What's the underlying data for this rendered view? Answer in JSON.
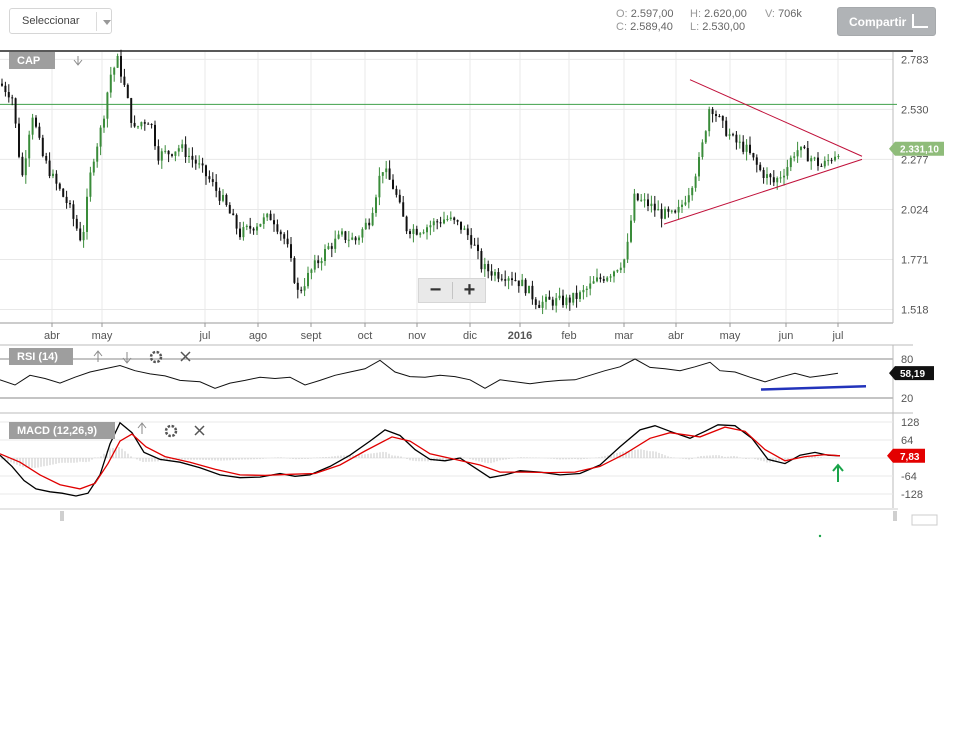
{
  "toolbar": {
    "select_label": "Seleccionar",
    "share_label": "Compartir",
    "share_icon": "share-icon"
  },
  "ohlc": {
    "o_label": "O:",
    "o": "2.597,00",
    "h_label": "H:",
    "h": "2.620,00",
    "v_label": "V:",
    "v": "706k",
    "c_label": "C:",
    "c": "2.589,40",
    "l_label": "L:",
    "l": "2.530,00"
  },
  "chart_data": [
    {
      "type": "candlestick",
      "title": "CAP",
      "xlabel": "",
      "ylabel": "",
      "x_ticks": [
        "abr",
        "may",
        "jul",
        "ago",
        "sept",
        "oct",
        "nov",
        "dic",
        "2016",
        "feb",
        "mar",
        "abr",
        "may",
        "jun",
        "jul"
      ],
      "y_ticks": [
        2783,
        2530,
        2277,
        2024,
        1771,
        1518
      ],
      "y_tick_labels": [
        "2.783",
        "2.530",
        "2.277",
        "2.024",
        "1.771",
        "1.518"
      ],
      "ylim": [
        1450,
        2820
      ],
      "last_price": 2331.1,
      "last_price_label": "2.331,10",
      "horizontal_level": 2555,
      "close_path": [
        [
          0,
          2660
        ],
        [
          12,
          2600
        ],
        [
          22,
          2180
        ],
        [
          32,
          2520
        ],
        [
          42,
          2300
        ],
        [
          55,
          2160
        ],
        [
          68,
          2050
        ],
        [
          82,
          1860
        ],
        [
          92,
          2260
        ],
        [
          102,
          2450
        ],
        [
          110,
          2700
        ],
        [
          118,
          2780
        ],
        [
          126,
          2610
        ],
        [
          134,
          2420
        ],
        [
          142,
          2470
        ],
        [
          150,
          2480
        ],
        [
          158,
          2300
        ],
        [
          168,
          2310
        ],
        [
          180,
          2340
        ],
        [
          196,
          2260
        ],
        [
          210,
          2170
        ],
        [
          224,
          2060
        ],
        [
          240,
          1900
        ],
        [
          256,
          1950
        ],
        [
          272,
          1990
        ],
        [
          286,
          1860
        ],
        [
          298,
          1600
        ],
        [
          312,
          1720
        ],
        [
          328,
          1830
        ],
        [
          342,
          1890
        ],
        [
          356,
          1870
        ],
        [
          370,
          1980
        ],
        [
          382,
          2240
        ],
        [
          394,
          2130
        ],
        [
          406,
          1930
        ],
        [
          418,
          1920
        ],
        [
          432,
          1950
        ],
        [
          446,
          1980
        ],
        [
          460,
          1940
        ],
        [
          472,
          1870
        ],
        [
          482,
          1730
        ],
        [
          496,
          1700
        ],
        [
          510,
          1690
        ],
        [
          524,
          1640
        ],
        [
          538,
          1550
        ],
        [
          552,
          1560
        ],
        [
          566,
          1560
        ],
        [
          580,
          1590
        ],
        [
          596,
          1660
        ],
        [
          612,
          1710
        ],
        [
          626,
          1780
        ],
        [
          634,
          2080
        ],
        [
          648,
          2050
        ],
        [
          662,
          2000
        ],
        [
          676,
          1990
        ],
        [
          690,
          2130
        ],
        [
          700,
          2280
        ],
        [
          710,
          2560
        ],
        [
          722,
          2450
        ],
        [
          734,
          2370
        ],
        [
          746,
          2330
        ],
        [
          760,
          2220
        ],
        [
          774,
          2160
        ],
        [
          786,
          2230
        ],
        [
          796,
          2330
        ],
        [
          810,
          2290
        ],
        [
          822,
          2240
        ],
        [
          834,
          2300
        ],
        [
          840,
          2331
        ]
      ],
      "drawn_trendlines": [
        {
          "name": "upper",
          "from": [
            690,
            2680
          ],
          "to": [
            862,
            2293
          ]
        },
        {
          "name": "lower",
          "from": [
            664,
            1950
          ],
          "to": [
            862,
            2277
          ]
        }
      ]
    },
    {
      "type": "line",
      "title": "RSI (14)",
      "y_ticks": [
        80,
        20
      ],
      "y_tick_labels": [
        "80",
        "20"
      ],
      "ylim": [
        10,
        90
      ],
      "last_value": 58.19,
      "last_value_label": "58,19",
      "values_path": [
        [
          0,
          48
        ],
        [
          15,
          40
        ],
        [
          30,
          55
        ],
        [
          45,
          50
        ],
        [
          60,
          43
        ],
        [
          75,
          52
        ],
        [
          90,
          60
        ],
        [
          105,
          65
        ],
        [
          120,
          70
        ],
        [
          135,
          62
        ],
        [
          150,
          57
        ],
        [
          165,
          54
        ],
        [
          180,
          47
        ],
        [
          200,
          45
        ],
        [
          215,
          35
        ],
        [
          230,
          43
        ],
        [
          245,
          47
        ],
        [
          260,
          52
        ],
        [
          275,
          50
        ],
        [
          290,
          52
        ],
        [
          305,
          40
        ],
        [
          320,
          47
        ],
        [
          335,
          55
        ],
        [
          350,
          60
        ],
        [
          365,
          65
        ],
        [
          380,
          78
        ],
        [
          395,
          60
        ],
        [
          410,
          53
        ],
        [
          425,
          52
        ],
        [
          440,
          55
        ],
        [
          455,
          53
        ],
        [
          470,
          48
        ],
        [
          485,
          35
        ],
        [
          500,
          48
        ],
        [
          515,
          45
        ],
        [
          530,
          42
        ],
        [
          545,
          45
        ],
        [
          560,
          47
        ],
        [
          575,
          48
        ],
        [
          590,
          55
        ],
        [
          605,
          62
        ],
        [
          620,
          68
        ],
        [
          635,
          80
        ],
        [
          650,
          67
        ],
        [
          665,
          65
        ],
        [
          680,
          62
        ],
        [
          695,
          68
        ],
        [
          710,
          75
        ],
        [
          720,
          62
        ],
        [
          735,
          60
        ],
        [
          750,
          52
        ],
        [
          765,
          45
        ],
        [
          780,
          52
        ],
        [
          795,
          58
        ],
        [
          810,
          52
        ],
        [
          825,
          55
        ],
        [
          838,
          58.19
        ]
      ],
      "drawn_trendlines": [
        {
          "name": "support",
          "from": [
            761,
            33
          ],
          "to": [
            866,
            38
          ]
        }
      ]
    },
    {
      "type": "line",
      "title": "MACD (12,26,9)",
      "y_ticks": [
        128,
        64,
        0,
        -64,
        -128
      ],
      "y_tick_labels": [
        "128",
        "64",
        "",
        "-64",
        "-128"
      ],
      "ylim": [
        -150,
        150
      ],
      "last_value": 7.83,
      "last_value_label": "7,83",
      "series": [
        {
          "name": "MACD",
          "color": "#000000",
          "values_path": [
            [
              0,
              10
            ],
            [
              12,
              -30
            ],
            [
              24,
              -80
            ],
            [
              36,
              -110
            ],
            [
              50,
              -120
            ],
            [
              62,
              -125
            ],
            [
              76,
              -135
            ],
            [
              88,
              -125
            ],
            [
              100,
              -60
            ],
            [
              110,
              50
            ],
            [
              120,
              125
            ],
            [
              132,
              90
            ],
            [
              144,
              20
            ],
            [
              160,
              -5
            ],
            [
              180,
              -15
            ],
            [
              200,
              -35
            ],
            [
              220,
              -60
            ],
            [
              240,
              -70
            ],
            [
              260,
              -68
            ],
            [
              280,
              -55
            ],
            [
              295,
              -65
            ],
            [
              310,
              -60
            ],
            [
              330,
              -30
            ],
            [
              350,
              10
            ],
            [
              370,
              60
            ],
            [
              385,
              100
            ],
            [
              400,
              80
            ],
            [
              415,
              30
            ],
            [
              430,
              -5
            ],
            [
              445,
              -10
            ],
            [
              460,
              0
            ],
            [
              475,
              -35
            ],
            [
              490,
              -70
            ],
            [
              505,
              -60
            ],
            [
              520,
              -45
            ],
            [
              540,
              -50
            ],
            [
              560,
              -60
            ],
            [
              580,
              -55
            ],
            [
              600,
              -25
            ],
            [
              620,
              40
            ],
            [
              640,
              100
            ],
            [
              655,
              115
            ],
            [
              670,
              95
            ],
            [
              690,
              70
            ],
            [
              705,
              95
            ],
            [
              718,
              118
            ],
            [
              735,
              115
            ],
            [
              752,
              70
            ],
            [
              768,
              -5
            ],
            [
              785,
              -20
            ],
            [
              800,
              10
            ],
            [
              815,
              20
            ],
            [
              828,
              10
            ],
            [
              840,
              8
            ]
          ]
        },
        {
          "name": "Signal",
          "color": "#e00000",
          "values_path": [
            [
              0,
              15
            ],
            [
              20,
              -15
            ],
            [
              40,
              -60
            ],
            [
              60,
              -95
            ],
            [
              80,
              -110
            ],
            [
              95,
              -90
            ],
            [
              108,
              -20
            ],
            [
              120,
              60
            ],
            [
              132,
              85
            ],
            [
              146,
              40
            ],
            [
              165,
              5
            ],
            [
              190,
              -15
            ],
            [
              215,
              -40
            ],
            [
              240,
              -60
            ],
            [
              265,
              -62
            ],
            [
              290,
              -58
            ],
            [
              315,
              -55
            ],
            [
              340,
              -25
            ],
            [
              365,
              25
            ],
            [
              392,
              75
            ],
            [
              410,
              60
            ],
            [
              430,
              15
            ],
            [
              455,
              -5
            ],
            [
              480,
              -25
            ],
            [
              500,
              -50
            ],
            [
              525,
              -50
            ],
            [
              550,
              -52
            ],
            [
              575,
              -50
            ],
            [
              600,
              -30
            ],
            [
              625,
              15
            ],
            [
              650,
              70
            ],
            [
              670,
              90
            ],
            [
              700,
              75
            ],
            [
              725,
              110
            ],
            [
              745,
              95
            ],
            [
              765,
              30
            ],
            [
              785,
              -10
            ],
            [
              805,
              5
            ],
            [
              825,
              12
            ],
            [
              840,
              8
            ]
          ]
        }
      ]
    }
  ],
  "panels": {
    "rsi_tag": "RSI (14)",
    "macd_tag": "MACD (12,26,9)",
    "cap_tag": "CAP",
    "zoom_out": "−",
    "zoom_in": "+"
  },
  "colors": {
    "up": "#3a8c3a",
    "down": "#111111",
    "grid": "#e8e8e8",
    "price_badge": "#8fbc7a",
    "macd_badge": "#e30000",
    "horizontal_level": "#3fa04a",
    "trendline": "#c0103a",
    "rsi_trendline": "#2233bb",
    "annotation_arrow": "#1aa44a"
  }
}
